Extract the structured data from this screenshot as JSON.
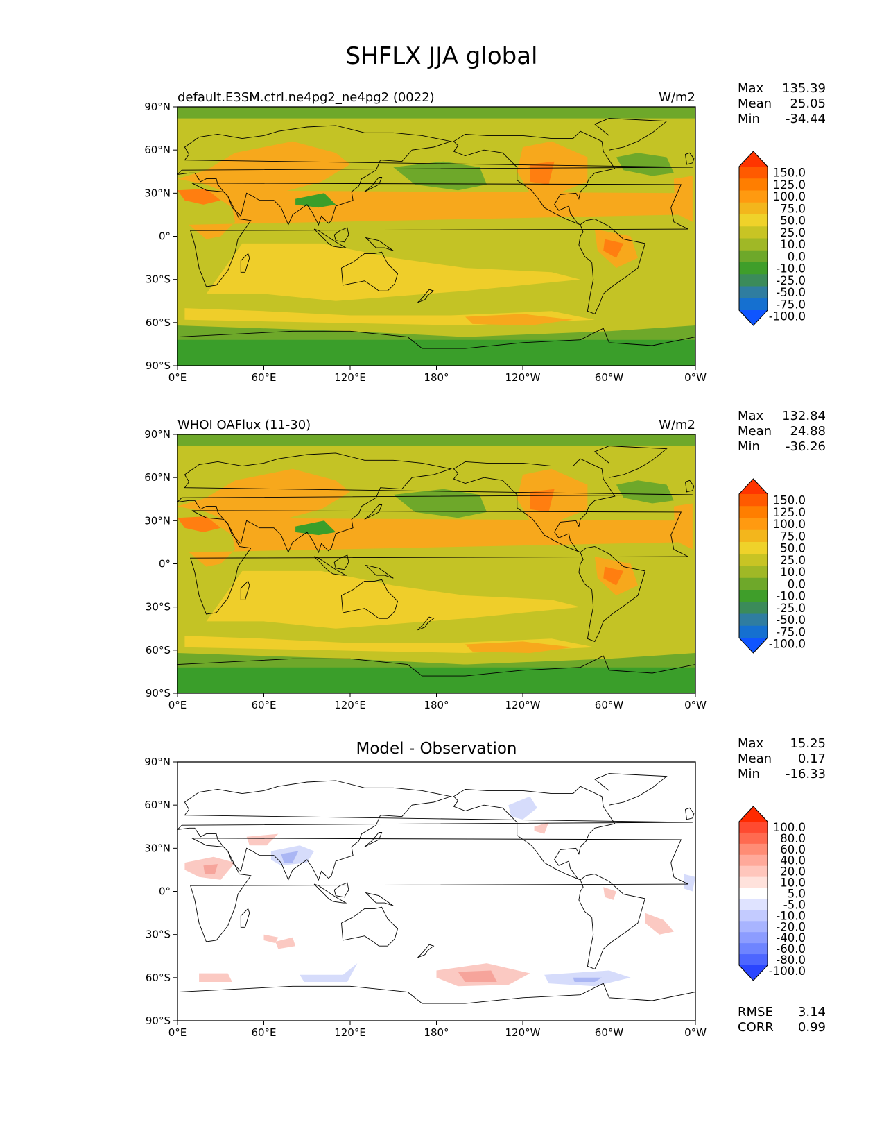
{
  "title": "SHFLX JJA global",
  "x_ticks": [
    "0°E",
    "60°E",
    "120°E",
    "180°",
    "120°W",
    "60°W",
    "0°W"
  ],
  "y_ticks": [
    "90°N",
    "60°N",
    "30°N",
    "0°",
    "30°S",
    "60°S",
    "90°S"
  ],
  "panels": [
    {
      "left_title": "default.E3SM.ctrl.ne4pg2_ne4pg2 (0022)",
      "center_title": "",
      "right_title": "W/m2",
      "stats": {
        "labels": [
          "Max",
          "Mean",
          "Min"
        ],
        "values": [
          "135.39",
          "25.05",
          "-34.44"
        ]
      },
      "colorbar": {
        "labels": [
          "150.0",
          "125.0",
          "100.0",
          "75.0",
          "50.0",
          "25.0",
          "10.0",
          "0.0",
          "-10.0",
          "-25.0",
          "-50.0",
          "-75.0",
          "-100.0"
        ],
        "colors": [
          "#ff3500",
          "#ff5a00",
          "#ff7e00",
          "#ff9a10",
          "#f3b61c",
          "#efd22a",
          "#c8c424",
          "#a0b826",
          "#6ea82a",
          "#3f9e2a",
          "#3b8b5a",
          "#2f7da0",
          "#1570d0",
          "#0f55ff"
        ]
      },
      "map_colors": {
        "ocean": "#c4c325",
        "land_hot": "#f7a81c",
        "land_very_hot": "#ff7e10",
        "cool": "#6ea82a",
        "cold": "#3a9e2a",
        "warm": "#efce2a"
      }
    },
    {
      "left_title": "WHOI OAFlux (11-30)",
      "center_title": "",
      "right_title": "W/m2",
      "stats": {
        "labels": [
          "Max",
          "Mean",
          "Min"
        ],
        "values": [
          "132.84",
          "24.88",
          "-36.26"
        ]
      },
      "colorbar": {
        "labels": [
          "150.0",
          "125.0",
          "100.0",
          "75.0",
          "50.0",
          "25.0",
          "10.0",
          "0.0",
          "-10.0",
          "-25.0",
          "-50.0",
          "-75.0",
          "-100.0"
        ],
        "colors": [
          "#ff3500",
          "#ff5a00",
          "#ff7e00",
          "#ff9a10",
          "#f3b61c",
          "#efd22a",
          "#c8c424",
          "#a0b826",
          "#6ea82a",
          "#3f9e2a",
          "#3b8b5a",
          "#2f7da0",
          "#1570d0",
          "#0f55ff"
        ]
      },
      "map_colors": {
        "ocean": "#c4c325",
        "land_hot": "#f7a81c",
        "land_very_hot": "#ff7e10",
        "cool": "#6ea82a",
        "cold": "#3a9e2a",
        "warm": "#efce2a"
      }
    },
    {
      "left_title": "",
      "center_title": "Model - Observation",
      "right_title": "",
      "stats": {
        "labels": [
          "Max",
          "Mean",
          "Min"
        ],
        "values": [
          "15.25",
          "0.17",
          "-16.33"
        ]
      },
      "colorbar": {
        "labels": [
          "100.0",
          "80.0",
          "60.0",
          "40.0",
          "20.0",
          "10.0",
          "5.0",
          "-5.0",
          "-10.0",
          "-20.0",
          "-40.0",
          "-60.0",
          "-80.0",
          "-100.0"
        ],
        "colors": [
          "#ff2a00",
          "#ff4a30",
          "#ff6a50",
          "#ff8c75",
          "#ffa99a",
          "#ffc6bc",
          "#ffe2dc",
          "#ffffff",
          "#dfe3ff",
          "#c3cbff",
          "#a8b4ff",
          "#8c9cff",
          "#6e84ff",
          "#4d66ff",
          "#2a45ff"
        ]
      },
      "bottom_stats": {
        "labels": [
          "RMSE",
          "CORR"
        ],
        "values": [
          "3.14",
          "0.99"
        ]
      },
      "map_colors": {
        "pos": "#fbc9c2",
        "pos_strong": "#f6a49b",
        "neg": "#d6dcfb",
        "neg_strong": "#aab6f4"
      }
    }
  ]
}
